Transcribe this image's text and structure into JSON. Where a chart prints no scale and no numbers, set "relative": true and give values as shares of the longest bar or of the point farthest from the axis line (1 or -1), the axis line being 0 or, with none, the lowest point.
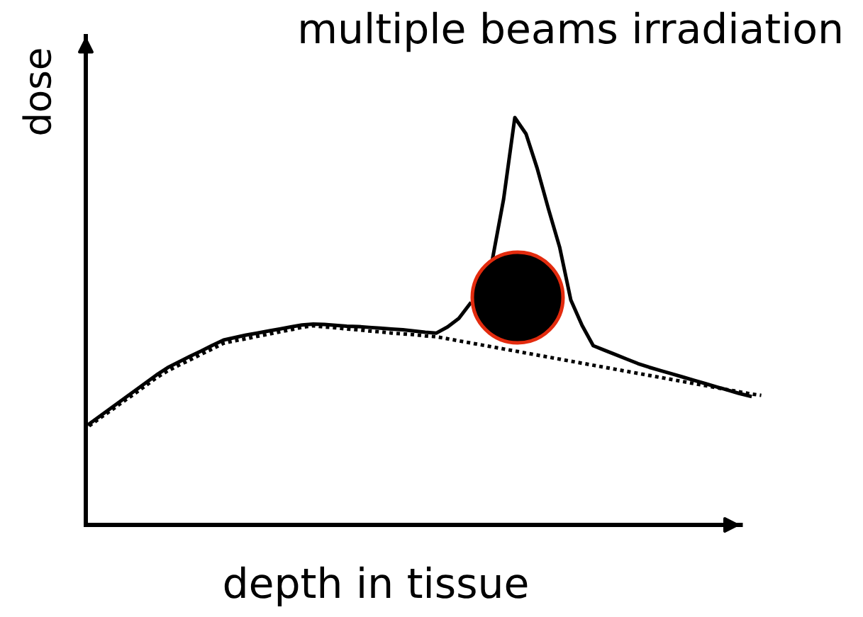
{
  "chart_data": {
    "type": "line",
    "title": "multiple beams irradiation",
    "xlabel": "depth in tissue",
    "ylabel": "dose",
    "relative": true,
    "tick_labels": false,
    "categories": [
      null,
      null,
      null,
      null,
      null,
      null,
      null,
      null,
      null,
      null,
      null,
      null,
      null,
      null,
      null,
      null,
      null,
      null,
      null,
      null,
      null,
      null,
      null,
      null,
      null,
      null,
      null,
      null,
      null,
      null,
      null,
      null,
      null,
      null,
      null,
      null,
      null,
      null,
      null,
      null,
      null,
      null,
      null,
      null,
      null,
      null,
      null,
      null,
      null,
      null,
      null,
      null,
      null,
      null,
      null,
      null,
      null,
      null,
      null,
      null,
      null
    ],
    "series": [
      {
        "color": "#000000",
        "line_style": "dotted",
        "values": [
          0.243,
          0.263,
          0.282,
          0.302,
          0.321,
          0.341,
          0.361,
          0.378,
          0.392,
          0.405,
          0.419,
          0.432,
          0.446,
          0.452,
          0.457,
          0.463,
          0.468,
          0.474,
          0.479,
          0.485,
          0.489,
          0.486,
          0.484,
          0.481,
          0.479,
          0.476,
          0.474,
          0.471,
          0.469,
          0.467,
          0.464,
          0.462,
          0.457,
          0.452,
          0.447,
          0.442,
          0.437,
          0.432,
          0.427,
          0.422,
          0.417,
          0.412,
          0.407,
          0.402,
          0.397,
          0.392,
          0.387,
          0.382,
          0.377,
          0.372,
          0.367,
          0.362,
          0.357,
          0.352,
          0.347,
          0.342,
          0.337,
          0.332,
          0.327,
          0.322,
          0.318
        ]
      },
      {
        "color": "#000000",
        "line_style": "solid",
        "values": [
          0.248,
          0.268,
          0.288,
          0.308,
          0.328,
          0.348,
          0.368,
          0.386,
          0.4,
          0.414,
          0.427,
          0.441,
          0.454,
          0.46,
          0.466,
          0.471,
          0.476,
          0.481,
          0.486,
          0.491,
          0.493,
          0.492,
          0.49,
          0.488,
          0.487,
          0.485,
          0.483,
          0.481,
          0.479,
          0.476,
          0.473,
          0.471,
          0.486,
          0.507,
          0.543,
          null,
          0.652,
          0.8,
          1.0,
          0.96,
          0.875,
          0.776,
          0.682,
          0.552,
          0.49,
          0.44,
          0.429,
          0.418,
          0.407,
          0.396,
          0.387,
          0.379,
          0.371,
          0.363,
          0.355,
          0.347,
          0.339,
          0.331,
          0.323,
          0.316,
          null
        ]
      }
    ]
  }
}
